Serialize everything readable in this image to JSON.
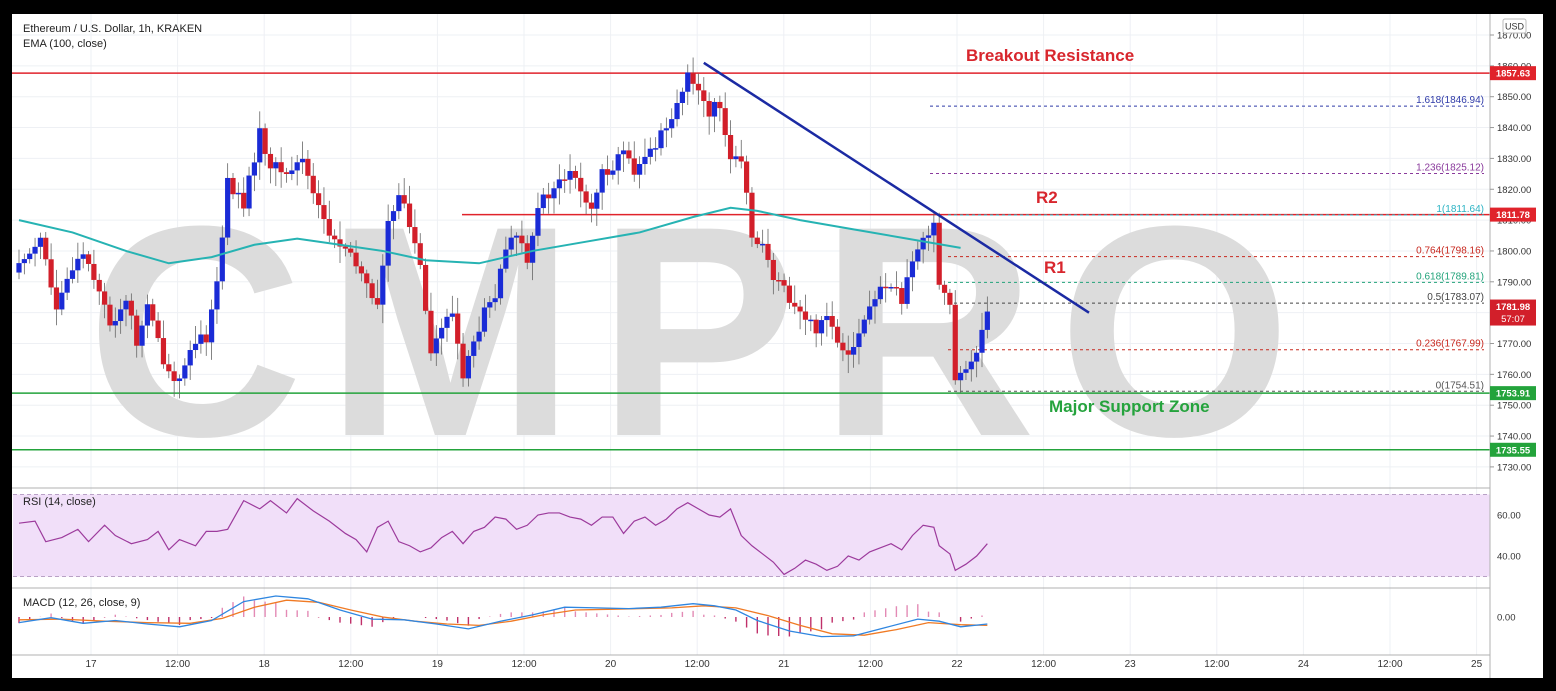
{
  "header": {
    "symbol_line": "Ethereum / U.S. Dollar, 1h, KRAKEN",
    "ema_line": "EMA (100, close)",
    "currency": "USD"
  },
  "watermark": "CMPRO",
  "annotations": {
    "breakout": "Breakout Resistance",
    "r2": "R2",
    "r1": "R1",
    "support": "Major Support Zone"
  },
  "colors": {
    "up": "#1a2bd6",
    "down": "#d21f2a",
    "ema": "#26b3b3",
    "resistance": "#e0232b",
    "support": "#23a33b",
    "trendline": "#1b2aa3",
    "rsi": "#9c3a9c",
    "macd": "#2f86e0",
    "signal": "#f07a24",
    "rsi_band": "#f1dff9"
  },
  "price_axis": {
    "ticks": [
      "1870.00",
      "1860.00",
      "1850.00",
      "1840.00",
      "1830.00",
      "1820.00",
      "1810.00",
      "1800.00",
      "1790.00",
      "1780.00",
      "1770.00",
      "1760.00",
      "1750.00",
      "1740.00",
      "1730.00"
    ]
  },
  "price_labels": {
    "breakout": "1857.63",
    "r2": "1811.78",
    "current": "1781.98",
    "countdown": "57:07",
    "support_top": "1753.91",
    "support_bottom": "1735.55"
  },
  "fib_levels": [
    {
      "label": "1.618(1846.94)",
      "value": 1846.94,
      "color": "#2e3aa8"
    },
    {
      "label": "1.236(1825.12)",
      "value": 1825.12,
      "color": "#8a3a9c"
    },
    {
      "label": "1(1811.64)",
      "value": 1811.64,
      "color": "#2bb3c4"
    },
    {
      "label": "0.764(1798.16)",
      "value": 1798.16,
      "color": "#c8281f"
    },
    {
      "label": "0.618(1789.81)",
      "value": 1789.81,
      "color": "#22a37a"
    },
    {
      "label": "0.5(1783.07)",
      "value": 1783.07,
      "color": "#444444"
    },
    {
      "label": "0.236(1767.99)",
      "value": 1767.99,
      "color": "#c8281f"
    },
    {
      "label": "0(1754.51)",
      "value": 1754.51,
      "color": "#555555"
    }
  ],
  "rsi": {
    "label": "RSI (14, close)",
    "ticks": [
      "60.00",
      "40.00"
    ]
  },
  "macd": {
    "label": "MACD (12, 26, close, 9)",
    "ticks": [
      "0.00"
    ]
  },
  "time_axis": {
    "labels": [
      "17",
      "12:00",
      "18",
      "12:00",
      "19",
      "12:00",
      "20",
      "12:00",
      "21",
      "12:00",
      "22",
      "12:00",
      "23",
      "12:00",
      "24",
      "12:00",
      "25"
    ]
  },
  "chart_data": {
    "type": "candlestick",
    "title": "Ethereum / U.S. Dollar, 1h, KRAKEN",
    "ylim": [
      1726,
      1872
    ],
    "x_unit": "hourly bars",
    "levels": {
      "breakout_resistance": 1857.63,
      "r2": 1811.78,
      "support_top": 1753.91,
      "support_bottom": 1735.55
    },
    "close_path": [
      [
        0,
        1795
      ],
      [
        4,
        1805
      ],
      [
        7,
        1780
      ],
      [
        10,
        1795
      ],
      [
        12,
        1800
      ],
      [
        15,
        1788
      ],
      [
        17,
        1775
      ],
      [
        20,
        1785
      ],
      [
        22,
        1770
      ],
      [
        24,
        1782
      ],
      [
        27,
        1765
      ],
      [
        29,
        1758
      ],
      [
        31,
        1762
      ],
      [
        33,
        1770
      ],
      [
        35,
        1772
      ],
      [
        37,
        1790
      ],
      [
        39,
        1822
      ],
      [
        42,
        1815
      ],
      [
        45,
        1838
      ],
      [
        47,
        1828
      ],
      [
        50,
        1825
      ],
      [
        53,
        1830
      ],
      [
        55,
        1820
      ],
      [
        58,
        1805
      ],
      [
        61,
        1800
      ],
      [
        63,
        1795
      ],
      [
        65,
        1790
      ],
      [
        67,
        1782
      ],
      [
        69,
        1808
      ],
      [
        71,
        1820
      ],
      [
        73,
        1808
      ],
      [
        75,
        1797
      ],
      [
        77,
        1768
      ],
      [
        79,
        1775
      ],
      [
        81,
        1780
      ],
      [
        83,
        1760
      ],
      [
        85,
        1770
      ],
      [
        87,
        1780
      ],
      [
        89,
        1785
      ],
      [
        91,
        1800
      ],
      [
        93,
        1806
      ],
      [
        95,
        1798
      ],
      [
        97,
        1815
      ],
      [
        99,
        1818
      ],
      [
        101,
        1822
      ],
      [
        103,
        1825
      ],
      [
        105,
        1820
      ],
      [
        107,
        1812
      ],
      [
        109,
        1825
      ],
      [
        111,
        1828
      ],
      [
        113,
        1833
      ],
      [
        115,
        1824
      ],
      [
        117,
        1830
      ],
      [
        119,
        1835
      ],
      [
        121,
        1841
      ],
      [
        123,
        1848
      ],
      [
        125,
        1856
      ],
      [
        127,
        1853
      ],
      [
        129,
        1845
      ],
      [
        131,
        1848
      ],
      [
        133,
        1830
      ],
      [
        135,
        1828
      ],
      [
        137,
        1806
      ],
      [
        139,
        1802
      ],
      [
        141,
        1790
      ],
      [
        143,
        1788
      ],
      [
        145,
        1782
      ],
      [
        147,
        1778
      ],
      [
        149,
        1775
      ],
      [
        151,
        1780
      ],
      [
        153,
        1771
      ],
      [
        155,
        1768
      ],
      [
        157,
        1773
      ],
      [
        159,
        1782
      ],
      [
        161,
        1787
      ],
      [
        163,
        1790
      ],
      [
        165,
        1784
      ],
      [
        167,
        1795
      ],
      [
        169,
        1804
      ],
      [
        171,
        1810
      ],
      [
        172,
        1790
      ],
      [
        174,
        1783
      ],
      [
        175,
        1757
      ],
      [
        177,
        1761
      ],
      [
        179,
        1768
      ],
      [
        181,
        1782
      ]
    ],
    "ema100": [
      [
        0,
        1810
      ],
      [
        10,
        1806
      ],
      [
        20,
        1800
      ],
      [
        28,
        1796
      ],
      [
        36,
        1798
      ],
      [
        44,
        1802
      ],
      [
        52,
        1804
      ],
      [
        60,
        1802
      ],
      [
        68,
        1800
      ],
      [
        76,
        1797
      ],
      [
        86,
        1796
      ],
      [
        96,
        1800
      ],
      [
        106,
        1803
      ],
      [
        116,
        1806
      ],
      [
        126,
        1811
      ],
      [
        133,
        1814
      ],
      [
        138,
        1813
      ],
      [
        146,
        1810
      ],
      [
        156,
        1807
      ],
      [
        166,
        1804
      ],
      [
        176,
        1801
      ]
    ],
    "trendline": [
      [
        128,
        1861
      ],
      [
        200,
        1780
      ]
    ],
    "rsi": [
      [
        0,
        56
      ],
      [
        3,
        57
      ],
      [
        5,
        47
      ],
      [
        8,
        49
      ],
      [
        11,
        53
      ],
      [
        13,
        47
      ],
      [
        16,
        55
      ],
      [
        18,
        50
      ],
      [
        21,
        46
      ],
      [
        24,
        48
      ],
      [
        26,
        52
      ],
      [
        28,
        43
      ],
      [
        30,
        48
      ],
      [
        33,
        45
      ],
      [
        35,
        52
      ],
      [
        37,
        52
      ],
      [
        39,
        53
      ],
      [
        42,
        67
      ],
      [
        45,
        63
      ],
      [
        47,
        67
      ],
      [
        50,
        61
      ],
      [
        52,
        68
      ],
      [
        55,
        62
      ],
      [
        58,
        57
      ],
      [
        61,
        51
      ],
      [
        63,
        48
      ],
      [
        65,
        42
      ],
      [
        67,
        54
      ],
      [
        69,
        57
      ],
      [
        71,
        47
      ],
      [
        73,
        45
      ],
      [
        75,
        42
      ],
      [
        77,
        44
      ],
      [
        79,
        49
      ],
      [
        81,
        52
      ],
      [
        83,
        46
      ],
      [
        85,
        52
      ],
      [
        87,
        54
      ],
      [
        89,
        59
      ],
      [
        91,
        58
      ],
      [
        93,
        53
      ],
      [
        95,
        55
      ],
      [
        97,
        60
      ],
      [
        99,
        61
      ],
      [
        101,
        61
      ],
      [
        103,
        59
      ],
      [
        105,
        58
      ],
      [
        107,
        55
      ],
      [
        109,
        59
      ],
      [
        111,
        59
      ],
      [
        113,
        51
      ],
      [
        115,
        57
      ],
      [
        117,
        59
      ],
      [
        119,
        55
      ],
      [
        121,
        58
      ],
      [
        123,
        63
      ],
      [
        125,
        66
      ],
      [
        127,
        63
      ],
      [
        129,
        60
      ],
      [
        131,
        59
      ],
      [
        133,
        63
      ],
      [
        135,
        50
      ],
      [
        137,
        45
      ],
      [
        139,
        41
      ],
      [
        141,
        37
      ],
      [
        143,
        31
      ],
      [
        145,
        34
      ],
      [
        147,
        38
      ],
      [
        149,
        36
      ],
      [
        151,
        33
      ],
      [
        153,
        35
      ],
      [
        155,
        40
      ],
      [
        157,
        38
      ],
      [
        159,
        42
      ],
      [
        161,
        44
      ],
      [
        163,
        46
      ],
      [
        165,
        43
      ],
      [
        167,
        50
      ],
      [
        169,
        55
      ],
      [
        171,
        54
      ],
      [
        172,
        45
      ],
      [
        174,
        41
      ],
      [
        175,
        33
      ],
      [
        177,
        36
      ],
      [
        179,
        40
      ],
      [
        181,
        46
      ]
    ],
    "macd": [
      [
        0,
        -0.8
      ],
      [
        6,
        -0.1
      ],
      [
        12,
        -0.9
      ],
      [
        18,
        -0.5
      ],
      [
        24,
        -1.0
      ],
      [
        30,
        -1.4
      ],
      [
        36,
        -0.5
      ],
      [
        42,
        2.2
      ],
      [
        48,
        3.0
      ],
      [
        54,
        2.6
      ],
      [
        60,
        1.0
      ],
      [
        66,
        -0.3
      ],
      [
        72,
        -0.4
      ],
      [
        78,
        -1.0
      ],
      [
        84,
        -1.7
      ],
      [
        90,
        -0.6
      ],
      [
        96,
        0.3
      ],
      [
        102,
        1.4
      ],
      [
        108,
        1.3
      ],
      [
        114,
        1.2
      ],
      [
        120,
        1.4
      ],
      [
        126,
        1.9
      ],
      [
        130,
        1.6
      ],
      [
        134,
        1.0
      ],
      [
        138,
        -0.5
      ],
      [
        144,
        -2.0
      ],
      [
        150,
        -2.8
      ],
      [
        156,
        -2.7
      ],
      [
        162,
        -1.5
      ],
      [
        168,
        -0.3
      ],
      [
        172,
        -0.6
      ],
      [
        176,
        -1.4
      ],
      [
        181,
        -1.0
      ]
    ],
    "signal": [
      [
        0,
        -0.4
      ],
      [
        8,
        -0.3
      ],
      [
        16,
        -0.6
      ],
      [
        24,
        -0.8
      ],
      [
        32,
        -0.9
      ],
      [
        38,
        -0.2
      ],
      [
        44,
        1.4
      ],
      [
        50,
        2.4
      ],
      [
        56,
        2.1
      ],
      [
        62,
        1.0
      ],
      [
        68,
        0.0
      ],
      [
        74,
        -0.6
      ],
      [
        80,
        -1.0
      ],
      [
        86,
        -1.2
      ],
      [
        92,
        -0.6
      ],
      [
        98,
        0.3
      ],
      [
        104,
        1.0
      ],
      [
        110,
        1.1
      ],
      [
        116,
        1.2
      ],
      [
        122,
        1.3
      ],
      [
        128,
        1.6
      ],
      [
        134,
        1.3
      ],
      [
        140,
        0.2
      ],
      [
        146,
        -1.2
      ],
      [
        152,
        -2.4
      ],
      [
        158,
        -2.6
      ],
      [
        164,
        -1.8
      ],
      [
        170,
        -0.8
      ],
      [
        176,
        -1.1
      ],
      [
        181,
        -1.2
      ]
    ]
  }
}
